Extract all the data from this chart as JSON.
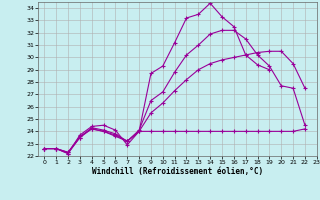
{
  "xlabel": "Windchill (Refroidissement éolien,°C)",
  "xlim": [
    -0.5,
    23
  ],
  "ylim": [
    22,
    34.5
  ],
  "yticks": [
    22,
    23,
    24,
    25,
    26,
    27,
    28,
    29,
    30,
    31,
    32,
    33,
    34
  ],
  "xticks": [
    0,
    1,
    2,
    3,
    4,
    5,
    6,
    7,
    8,
    9,
    10,
    11,
    12,
    13,
    14,
    15,
    16,
    17,
    18,
    19,
    20,
    21,
    22,
    23
  ],
  "background_color": "#c8eef0",
  "grid_color": "#b0b0b0",
  "line_color": "#990099",
  "series": [
    [
      22.6,
      22.6,
      22.2,
      23.7,
      24.4,
      24.5,
      24.1,
      22.9,
      24.0,
      28.7,
      29.3,
      31.2,
      33.2,
      33.5,
      34.4,
      33.3,
      32.5,
      30.2,
      29.4,
      29.0,
      null,
      null,
      null
    ],
    [
      22.6,
      22.6,
      22.2,
      23.5,
      24.3,
      24.1,
      23.8,
      23.2,
      24.0,
      24.0,
      24.0,
      24.0,
      24.0,
      24.0,
      24.0,
      24.0,
      24.0,
      24.0,
      24.0,
      24.0,
      24.0,
      24.0,
      24.2
    ],
    [
      22.6,
      22.6,
      22.3,
      23.5,
      24.2,
      24.0,
      23.6,
      23.2,
      24.0,
      25.5,
      26.3,
      27.3,
      28.2,
      29.0,
      29.5,
      29.8,
      30.0,
      30.2,
      30.4,
      30.5,
      30.5,
      29.5,
      27.5
    ],
    [
      22.6,
      22.6,
      22.3,
      23.6,
      24.2,
      24.0,
      23.7,
      23.2,
      24.1,
      26.5,
      27.2,
      28.8,
      30.2,
      31.0,
      31.9,
      32.2,
      32.2,
      31.5,
      30.2,
      29.3,
      27.7,
      27.5,
      24.5
    ]
  ],
  "x_values": [
    0,
    1,
    2,
    3,
    4,
    5,
    6,
    7,
    8,
    9,
    10,
    11,
    12,
    13,
    14,
    15,
    16,
    17,
    18,
    19,
    20,
    21,
    22
  ]
}
